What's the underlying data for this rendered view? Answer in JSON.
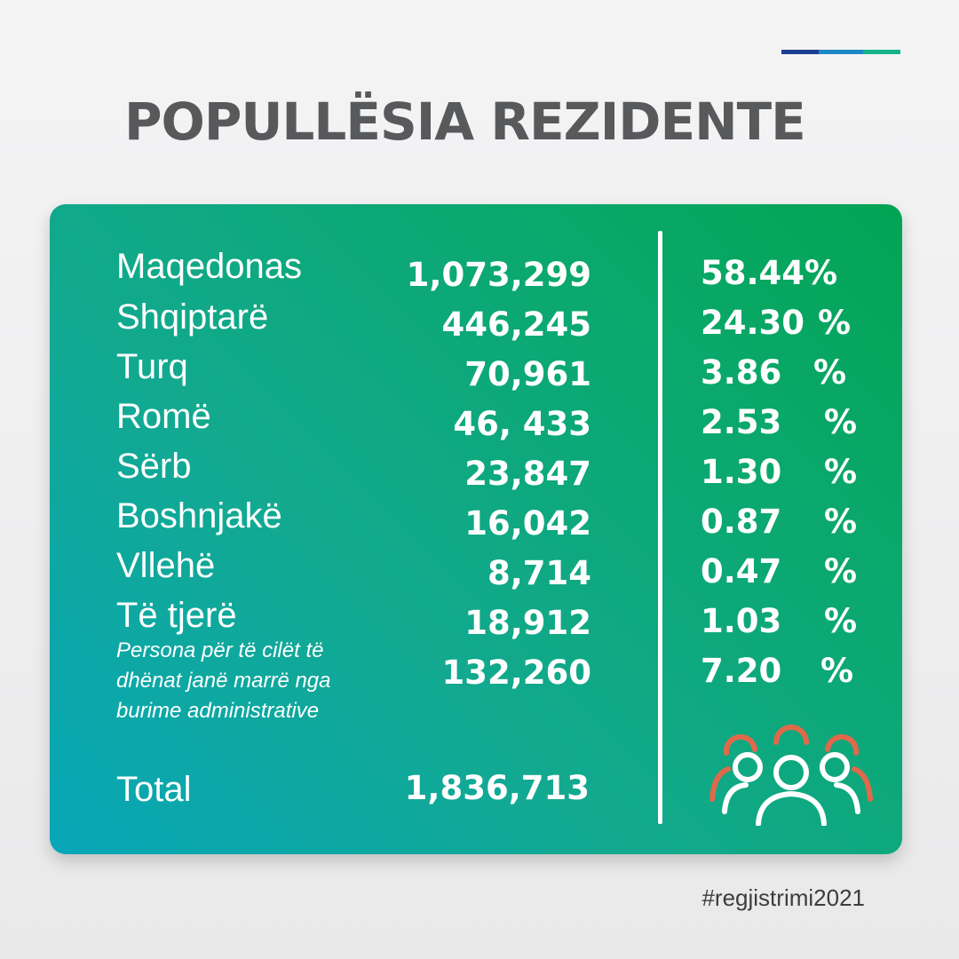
{
  "header": {
    "title": "POPULLËSIA REZIDENTE",
    "accent_colors": [
      "#1c3f94",
      "#1e88c7",
      "#14b38a"
    ]
  },
  "rows": [
    {
      "label": "Maqedonas",
      "count": "1,073,299",
      "pct": "58.44%",
      "sign": ""
    },
    {
      "label": "Shqiptarë",
      "count": "446,245",
      "pct": "24.30",
      "sign": "%"
    },
    {
      "label": "Turq",
      "count": "70,961",
      "pct": "3.86",
      "sign": "%"
    },
    {
      "label": "Romë",
      "count": "46, 433",
      "pct": "2.53",
      "sign": "%"
    },
    {
      "label": "Sërb",
      "count": "23,847",
      "pct": "1.30",
      "sign": "%"
    },
    {
      "label": "Boshnjakë",
      "count": "16,042",
      "pct": "0.87",
      "sign": "%"
    },
    {
      "label": "Vllehë",
      "count": "8,714",
      "pct": "0.47",
      "sign": "%"
    },
    {
      "label": "Të tjerë",
      "count": "18,912",
      "pct": "1.03",
      "sign": "%"
    }
  ],
  "admin_row": {
    "label": "Persona për të cilët të dhënat janë marrë nga burime administrative",
    "count": "132,260",
    "pct": "7.20",
    "sign": "%"
  },
  "total": {
    "label": "Total",
    "count": "1,836,713"
  },
  "icon": "people-group-icon",
  "colors": {
    "card_start": "#08a6b8",
    "card_end": "#02a453",
    "icon_back": "#e0694b",
    "title": "#58595b"
  },
  "footer": {
    "hashtag": "#regjistrimi2021"
  }
}
